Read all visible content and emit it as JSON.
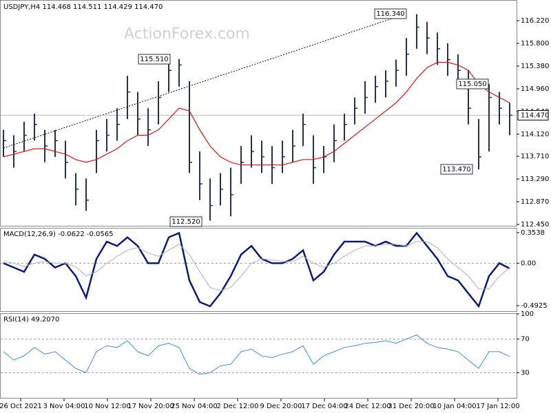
{
  "chart_data": [
    {
      "type": "ohlc",
      "title": "USDJPY,H4  114.468 114.511 114.429 114.470",
      "watermark": "ActionForex.com",
      "color": "#23324a",
      "high": [
        114.2,
        114.1,
        114.35,
        114.5,
        114.2,
        114.2,
        114.0,
        113.4,
        113.3,
        114.2,
        114.4,
        114.6,
        115.2,
        114.9,
        114.6,
        115.1,
        115.45,
        115.51,
        115.1,
        113.8,
        113.3,
        113.4,
        113.5,
        113.9,
        114.1,
        114.0,
        113.9,
        114.0,
        114.2,
        114.5,
        114.1,
        113.9,
        114.3,
        114.5,
        114.8,
        115.1,
        115.2,
        115.3,
        115.5,
        115.9,
        116.34,
        116.2,
        116.0,
        115.8,
        115.6,
        115.3,
        114.4,
        115.05,
        114.9,
        114.7
      ],
      "low": [
        113.7,
        113.5,
        113.8,
        114.0,
        113.6,
        113.7,
        113.3,
        112.8,
        112.7,
        113.4,
        113.8,
        114.0,
        114.4,
        114.1,
        113.9,
        114.3,
        114.9,
        115.0,
        113.4,
        112.9,
        112.52,
        112.8,
        112.6,
        113.2,
        113.5,
        113.4,
        113.2,
        113.4,
        113.6,
        113.9,
        113.2,
        113.4,
        113.6,
        114.0,
        114.3,
        114.5,
        114.7,
        114.8,
        115.0,
        115.2,
        115.7,
        115.6,
        115.4,
        115.2,
        115.0,
        114.3,
        113.47,
        113.8,
        114.3,
        114.1
      ],
      "close": [
        114.0,
        113.8,
        114.1,
        114.3,
        113.9,
        114.0,
        113.6,
        113.1,
        112.9,
        114.0,
        114.1,
        114.3,
        114.9,
        114.4,
        114.2,
        114.8,
        115.3,
        115.4,
        113.6,
        113.2,
        112.8,
        113.1,
        113.0,
        113.6,
        113.8,
        113.7,
        113.5,
        113.7,
        113.9,
        114.3,
        113.5,
        113.7,
        114.0,
        114.3,
        114.6,
        114.8,
        115.0,
        115.1,
        115.3,
        115.6,
        116.1,
        115.9,
        115.7,
        115.5,
        115.3,
        114.6,
        113.7,
        114.8,
        114.6,
        114.47
      ],
      "ma": {
        "color": "#e01010",
        "values": [
          113.7,
          113.75,
          113.8,
          113.85,
          113.85,
          113.8,
          113.75,
          113.65,
          113.6,
          113.65,
          113.75,
          113.85,
          114.0,
          114.1,
          114.1,
          114.2,
          114.4,
          114.6,
          114.55,
          114.2,
          113.9,
          113.7,
          113.6,
          113.55,
          113.55,
          113.55,
          113.55,
          113.55,
          113.6,
          113.65,
          113.65,
          113.7,
          113.8,
          113.95,
          114.1,
          114.25,
          114.4,
          114.55,
          114.7,
          114.9,
          115.15,
          115.35,
          115.45,
          115.45,
          115.4,
          115.3,
          115.05,
          114.9,
          114.8,
          114.7
        ]
      },
      "ylim": [
        112.425,
        116.577
      ],
      "yticks": [
        {
          "value": 116.22,
          "label": "116.220"
        },
        {
          "value": 115.8,
          "label": "115.800"
        },
        {
          "value": 115.38,
          "label": "115.380"
        },
        {
          "value": 114.96,
          "label": "114.960"
        },
        {
          "value": 114.54,
          "label": "114.540"
        },
        {
          "value": 114.12,
          "label": "114.120"
        },
        {
          "value": 113.71,
          "label": "113.710"
        },
        {
          "value": 113.29,
          "label": "113.290"
        },
        {
          "value": 112.87,
          "label": "112.870"
        },
        {
          "value": 112.45,
          "label": "112.450"
        }
      ],
      "last": {
        "value": 114.47,
        "label": "114.470"
      },
      "annotations": [
        "116.340",
        "115.510",
        "112.520",
        "115.050",
        "113.470"
      ]
    },
    {
      "type": "line",
      "title": "MACD(12,26,9) -0.0622 -0.0565",
      "series": [
        {
          "color": "#0a1a7a",
          "width": 2.5,
          "values": [
            0.0,
            -0.05,
            -0.1,
            0.1,
            0.05,
            -0.05,
            0.0,
            -0.15,
            -0.4,
            0.05,
            0.25,
            0.2,
            0.3,
            0.2,
            0.0,
            0.0,
            0.3,
            0.35,
            -0.2,
            -0.45,
            -0.5,
            -0.35,
            -0.15,
            0.1,
            0.2,
            0.05,
            0.0,
            0.0,
            0.05,
            0.15,
            -0.2,
            -0.1,
            0.1,
            0.25,
            0.25,
            0.25,
            0.2,
            0.25,
            0.2,
            0.2,
            0.35,
            0.2,
            0.05,
            -0.15,
            -0.2,
            -0.35,
            -0.5,
            -0.15,
            0.0,
            -0.0622
          ]
        },
        {
          "color": "#b0b0b0",
          "width": 1,
          "values": [
            0.02,
            0.0,
            -0.04,
            0.0,
            0.02,
            0.0,
            0.0,
            -0.04,
            -0.15,
            -0.1,
            0.0,
            0.08,
            0.15,
            0.18,
            0.12,
            0.08,
            0.15,
            0.22,
            0.1,
            -0.1,
            -0.28,
            -0.32,
            -0.28,
            -0.15,
            0.0,
            0.05,
            0.04,
            0.02,
            0.02,
            0.08,
            0.0,
            -0.05,
            0.0,
            0.08,
            0.15,
            0.2,
            0.2,
            0.22,
            0.22,
            0.2,
            0.25,
            0.25,
            0.18,
            0.05,
            -0.05,
            -0.15,
            -0.3,
            -0.3,
            -0.15,
            -0.0565
          ]
        }
      ],
      "ylim": [
        -0.556,
        0.402
      ],
      "yticks": [
        0.3538,
        {
          "value": 0,
          "label": "0.00"
        },
        -0.4925
      ],
      "dashed": [
        {
          "value": 0
        }
      ]
    },
    {
      "type": "line",
      "title": "RSI(14) 49.2070",
      "series": [
        {
          "color": "#3a8fd0",
          "width": 1,
          "values": [
            55,
            45,
            50,
            60,
            52,
            55,
            45,
            35,
            30,
            55,
            62,
            60,
            68,
            55,
            50,
            62,
            65,
            60,
            35,
            28,
            30,
            38,
            40,
            55,
            58,
            50,
            48,
            52,
            55,
            62,
            40,
            50,
            55,
            60,
            62,
            65,
            66,
            68,
            65,
            70,
            75,
            65,
            60,
            58,
            55,
            45,
            35,
            55,
            55,
            49.207
          ]
        }
      ],
      "ylim": [
        0,
        100
      ],
      "yticks": [
        100,
        70,
        30
      ],
      "dashed": [
        {
          "value": 70
        },
        {
          "value": 30
        }
      ],
      "x_labels": [
        "26 Oct 2021",
        "3 Nov 04:00",
        "10 Nov 12:00",
        "17 Nov 20:00",
        "25 Nov 04:00",
        "2 Dec 12:00",
        "9 Dec 20:00",
        "17 Dec 04:00",
        "24 Dec 12:00",
        "31 Dec 20:00",
        "10 Jan 04:00",
        "17 Jan 12:00"
      ]
    }
  ]
}
